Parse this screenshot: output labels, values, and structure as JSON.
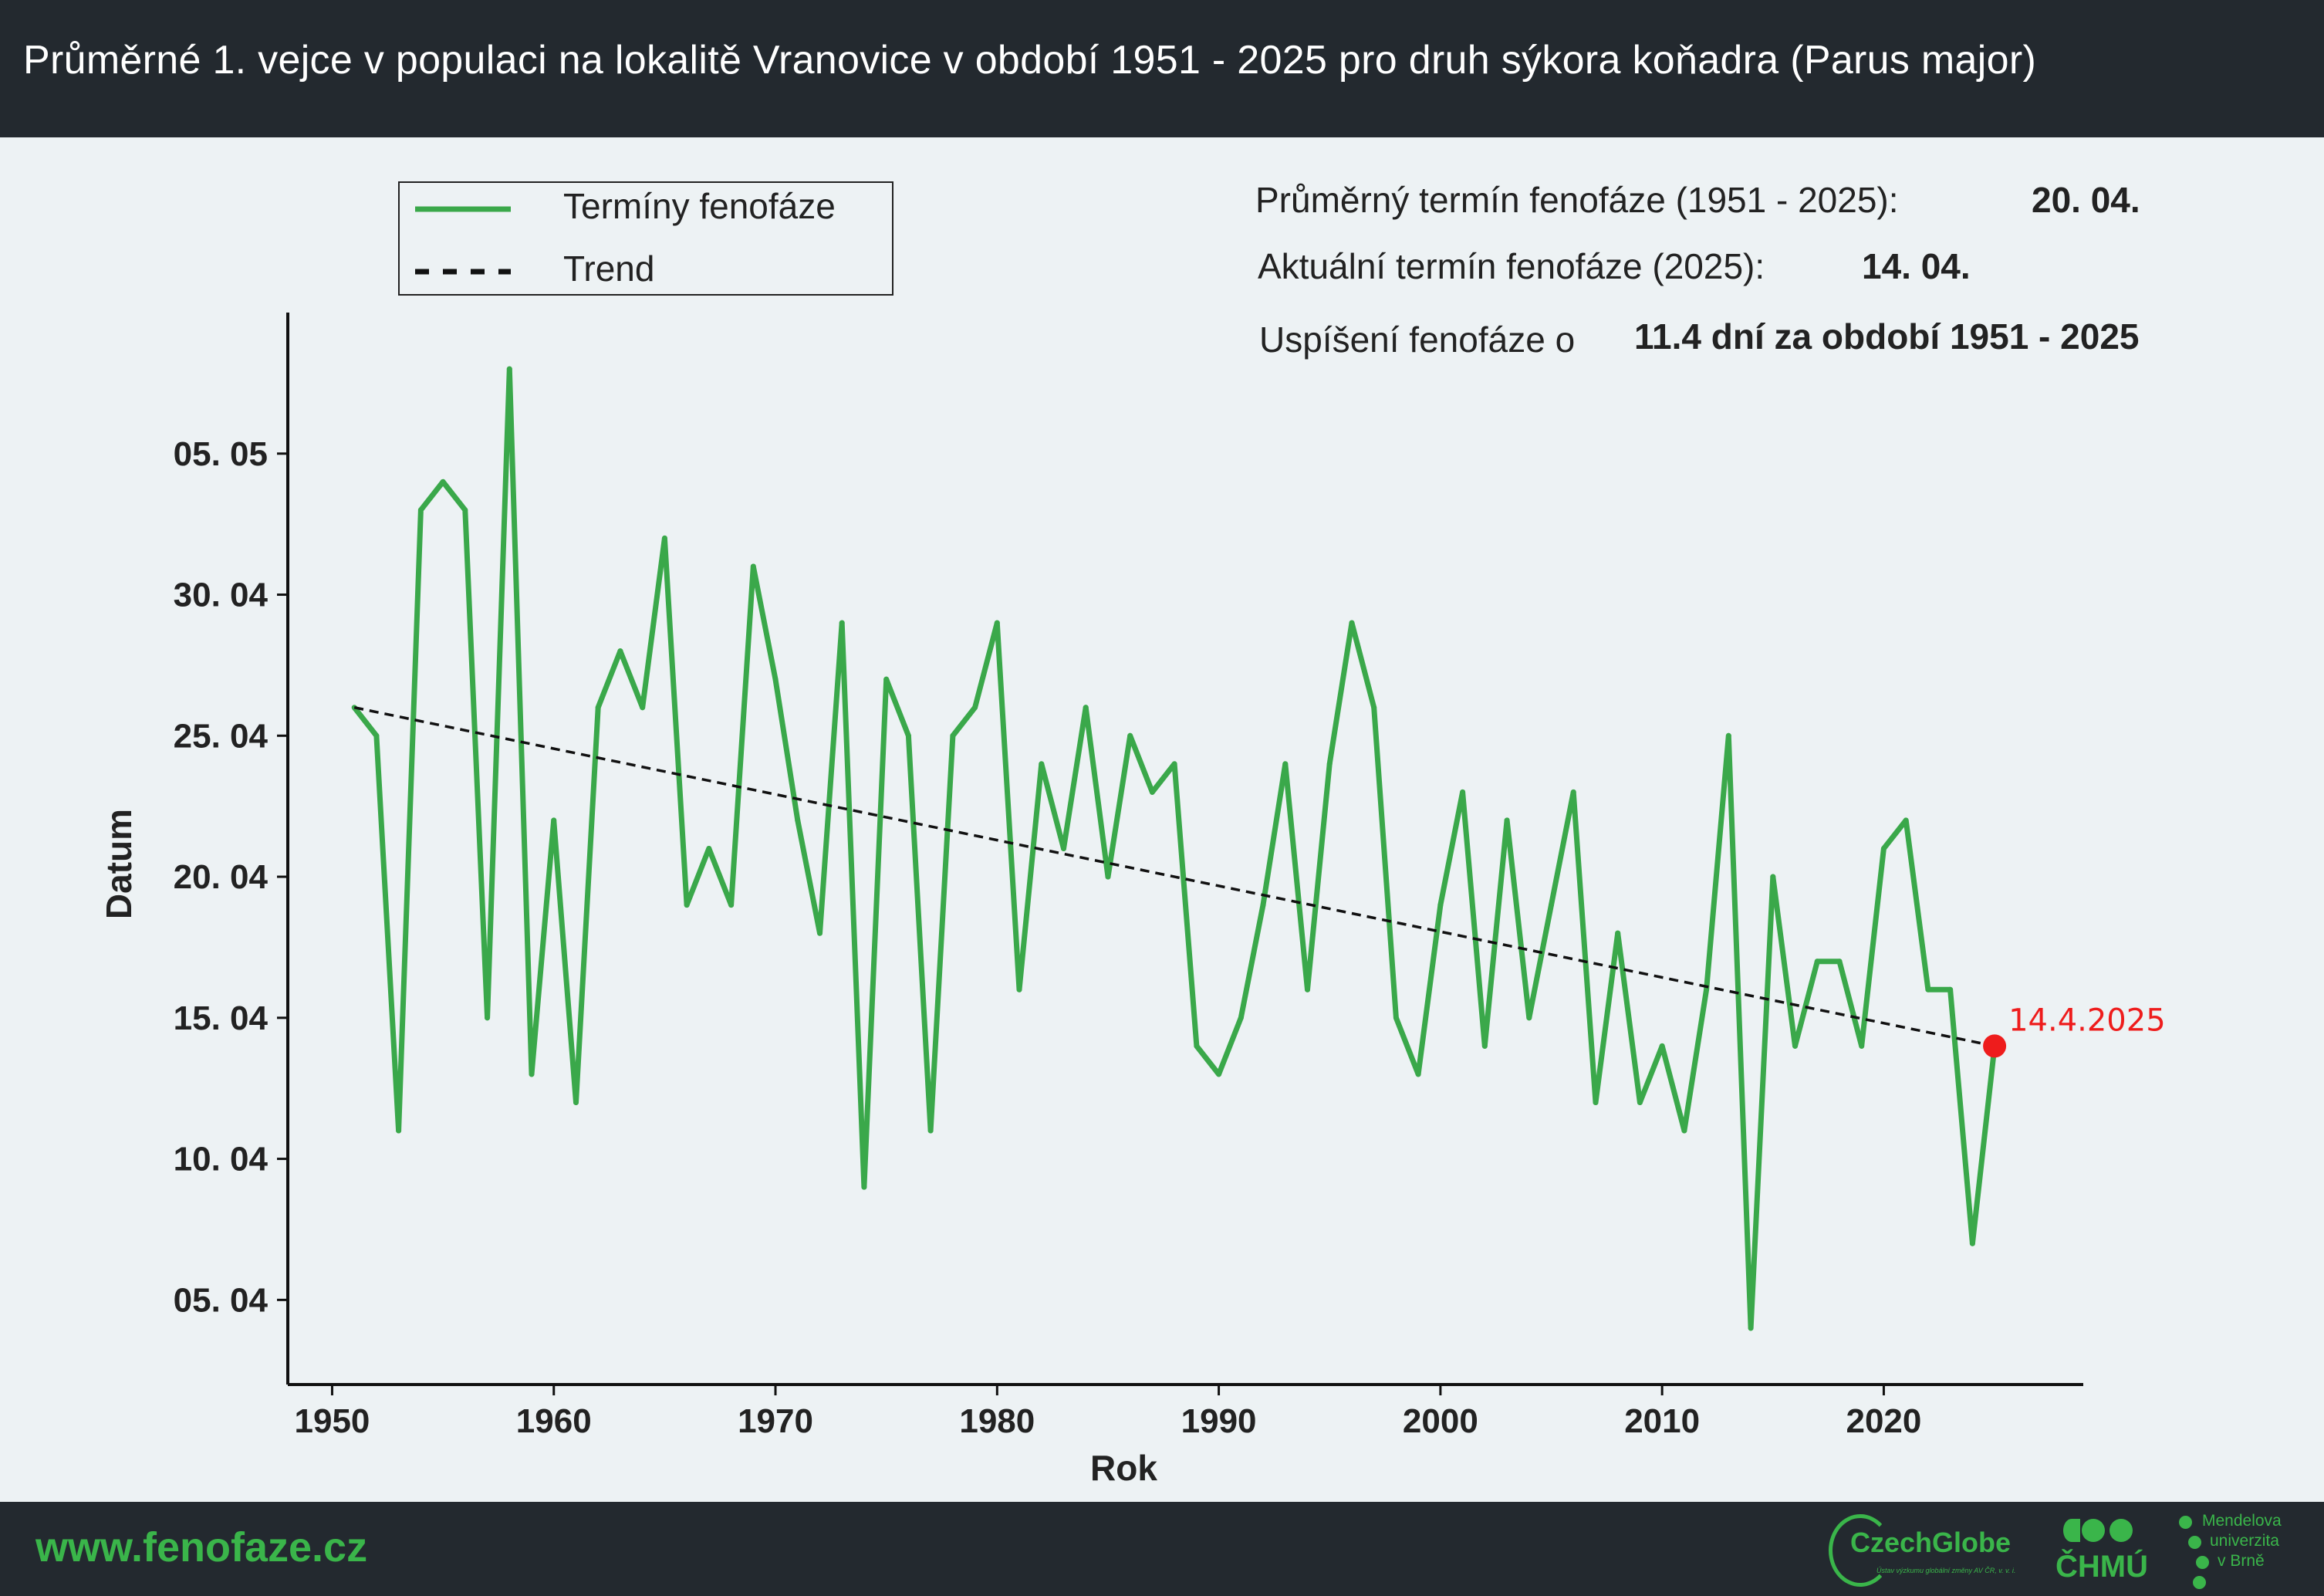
{
  "header": {
    "title": "Průměrné 1. vejce v populaci na lokalitě Vranovice v období 1951 - 2025 pro druh sýkora koňadra (Parus major)"
  },
  "info": {
    "avg_label": "Průměrný termín fenofáze (1951 - 2025):",
    "avg_value": "20. 04.",
    "current_label": "Aktuální termín fenofáze (2025):",
    "current_value": "14. 04.",
    "shift_label": "Uspíšení fenofáze o",
    "shift_value": "11.4 dní za období 1951 - 2025"
  },
  "footer": {
    "url": "www.fenofaze.cz",
    "logos": {
      "czechglobe": "CzechGlobe",
      "czechglobe_sub": "Ústav výzkumu globální změny AV ČR, v. v. i.",
      "chmu": "ČHMÚ",
      "mendel_line1": "Mendelova",
      "mendel_line2": "univerzita",
      "mendel_line3": "v Brně"
    }
  },
  "colors": {
    "series": "#3aa84a",
    "trend": "#111111",
    "highlight": "#ee1c1c",
    "background": "#edf2f4",
    "bar": "#23292f",
    "text": "#222222"
  },
  "chart_data": {
    "type": "line",
    "xlabel": "Rok",
    "ylabel": "Datum",
    "xlim": [
      1948,
      2029
    ],
    "ylim": [
      "2025-04-02",
      "2025-05-10"
    ],
    "x_ticks": [
      1950,
      1960,
      1970,
      1980,
      1990,
      2000,
      2010,
      2020
    ],
    "y_ticks": [
      {
        "date": "2025-04-05",
        "label": "05. 04"
      },
      {
        "date": "2025-04-10",
        "label": "10. 04"
      },
      {
        "date": "2025-04-15",
        "label": "15. 04"
      },
      {
        "date": "2025-04-20",
        "label": "20. 04"
      },
      {
        "date": "2025-04-25",
        "label": "25. 04"
      },
      {
        "date": "2025-04-30",
        "label": "30. 04"
      },
      {
        "date": "2025-05-05",
        "label": "05. 05"
      }
    ],
    "legend": {
      "position": "top-left",
      "entries": [
        "Termíny fenofáze",
        "Trend"
      ]
    },
    "grid": false,
    "series": [
      {
        "name": "Termíny fenofáze",
        "style": "solid",
        "points": [
          [
            1951,
            "2025-04-26"
          ],
          [
            1952,
            "2025-04-25"
          ],
          [
            1953,
            "2025-04-11"
          ],
          [
            1954,
            "2025-05-03"
          ],
          [
            1955,
            "2025-05-04"
          ],
          [
            1956,
            "2025-05-03"
          ],
          [
            1957,
            "2025-04-15"
          ],
          [
            1958,
            "2025-05-08"
          ],
          [
            1959,
            "2025-04-13"
          ],
          [
            1960,
            "2025-04-22"
          ],
          [
            1961,
            "2025-04-12"
          ],
          [
            1962,
            "2025-04-26"
          ],
          [
            1963,
            "2025-04-28"
          ],
          [
            1964,
            "2025-04-26"
          ],
          [
            1965,
            "2025-05-02"
          ],
          [
            1966,
            "2025-04-19"
          ],
          [
            1967,
            "2025-04-21"
          ],
          [
            1968,
            "2025-04-19"
          ],
          [
            1969,
            "2025-05-01"
          ],
          [
            1970,
            "2025-04-27"
          ],
          [
            1971,
            "2025-04-22"
          ],
          [
            1972,
            "2025-04-18"
          ],
          [
            1973,
            "2025-04-29"
          ],
          [
            1974,
            "2025-04-09"
          ],
          [
            1975,
            "2025-04-27"
          ],
          [
            1976,
            "2025-04-25"
          ],
          [
            1977,
            "2025-04-11"
          ],
          [
            1978,
            "2025-04-25"
          ],
          [
            1979,
            "2025-04-26"
          ],
          [
            1980,
            "2025-04-29"
          ],
          [
            1981,
            "2025-04-16"
          ],
          [
            1982,
            "2025-04-24"
          ],
          [
            1983,
            "2025-04-21"
          ],
          [
            1984,
            "2025-04-26"
          ],
          [
            1985,
            "2025-04-20"
          ],
          [
            1986,
            "2025-04-25"
          ],
          [
            1987,
            "2025-04-23"
          ],
          [
            1988,
            "2025-04-24"
          ],
          [
            1989,
            "2025-04-14"
          ],
          [
            1990,
            "2025-04-13"
          ],
          [
            1991,
            "2025-04-15"
          ],
          [
            1992,
            "2025-04-19"
          ],
          [
            1993,
            "2025-04-24"
          ],
          [
            1994,
            "2025-04-16"
          ],
          [
            1995,
            "2025-04-24"
          ],
          [
            1996,
            "2025-04-29"
          ],
          [
            1997,
            "2025-04-26"
          ],
          [
            1998,
            "2025-04-15"
          ],
          [
            1999,
            "2025-04-13"
          ],
          [
            2000,
            "2025-04-19"
          ],
          [
            2001,
            "2025-04-23"
          ],
          [
            2002,
            "2025-04-14"
          ],
          [
            2003,
            "2025-04-22"
          ],
          [
            2004,
            "2025-04-15"
          ],
          [
            2005,
            "2025-04-19"
          ],
          [
            2006,
            "2025-04-23"
          ],
          [
            2007,
            "2025-04-12"
          ],
          [
            2008,
            "2025-04-18"
          ],
          [
            2009,
            "2025-04-12"
          ],
          [
            2010,
            "2025-04-14"
          ],
          [
            2011,
            "2025-04-11"
          ],
          [
            2012,
            "2025-04-16"
          ],
          [
            2013,
            "2025-04-25"
          ],
          [
            2014,
            "2025-04-04"
          ],
          [
            2015,
            "2025-04-20"
          ],
          [
            2016,
            "2025-04-14"
          ],
          [
            2017,
            "2025-04-17"
          ],
          [
            2018,
            "2025-04-17"
          ],
          [
            2019,
            "2025-04-14"
          ],
          [
            2020,
            "2025-04-21"
          ],
          [
            2021,
            "2025-04-22"
          ],
          [
            2022,
            "2025-04-16"
          ],
          [
            2023,
            "2025-04-16"
          ],
          [
            2024,
            "2025-04-07"
          ],
          [
            2025,
            "2025-04-14"
          ]
        ]
      },
      {
        "name": "Trend",
        "style": "dashed",
        "points": [
          [
            1951,
            "2025-04-26"
          ],
          [
            2025,
            "2025-04-14"
          ]
        ]
      }
    ],
    "highlight": {
      "x": 2025,
      "y": "2025-04-14",
      "label": "14.4.2025"
    }
  }
}
